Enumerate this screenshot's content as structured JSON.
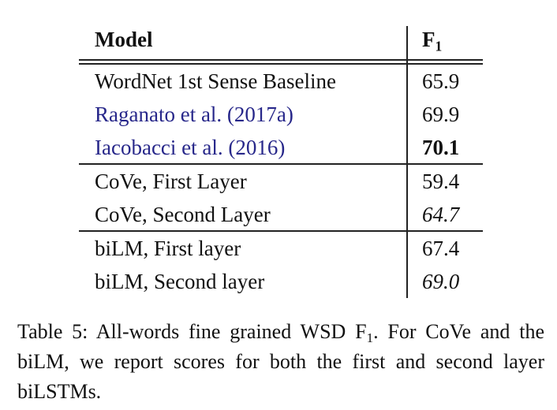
{
  "table": {
    "header": {
      "model": "Model",
      "metric": "F",
      "metric_sub": "1"
    },
    "groups": [
      {
        "rows": [
          {
            "model": "WordNet 1st Sense Baseline",
            "score": "65.9"
          },
          {
            "model": "Raganato et al. (2017a)",
            "score": "69.9",
            "model_color": "#27278a"
          },
          {
            "model": "Iacobacci et al. (2016)",
            "score": "70.1",
            "model_color": "#27278a",
            "score_style": "bold"
          }
        ]
      },
      {
        "rows": [
          {
            "model": "CoVe, First Layer",
            "score": "59.4"
          },
          {
            "model": "CoVe, Second Layer",
            "score": "64.7",
            "score_style": "italic"
          }
        ]
      },
      {
        "rows": [
          {
            "model": "biLM, First layer",
            "score": "67.4"
          },
          {
            "model": "biLM, Second layer",
            "score": "69.0",
            "score_style": "italic"
          }
        ]
      }
    ]
  },
  "caption": {
    "before": "Table 5: All-words fine grained WSD F",
    "sub": "1",
    "after": ".  For CoVe and the biLM, we report scores for both the first and second layer biLSTMs."
  }
}
